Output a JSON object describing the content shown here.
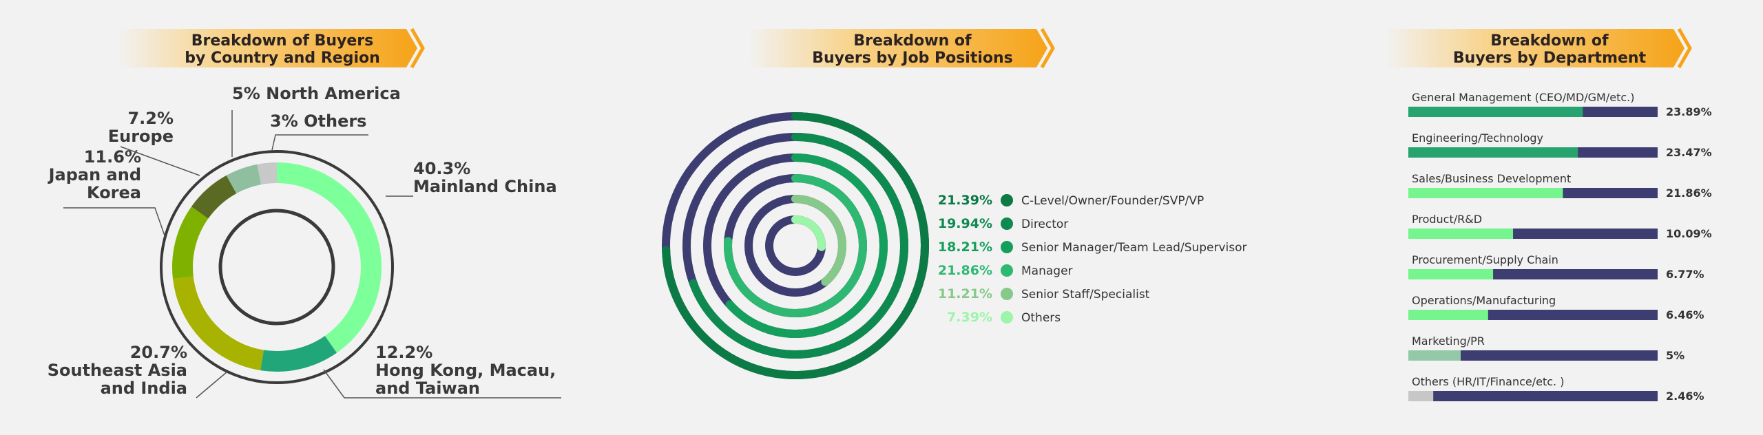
{
  "colors": {
    "navy": "#3d3d72",
    "banner_orange": "#f6a318",
    "background": "#f2f2f2"
  },
  "chart_data": [
    {
      "type": "pie",
      "title_lines": [
        "Breakdown of Buyers",
        "by Country and Region"
      ],
      "slices": [
        {
          "pct_label": "40.3%",
          "name_lines": [
            "Mainland China"
          ],
          "value": 40.3,
          "color": "#7dff9a"
        },
        {
          "pct_label": "12.2%",
          "name_lines": [
            "Hong Kong, Macau,",
            "and Taiwan"
          ],
          "value": 12.2,
          "color": "#21a67a"
        },
        {
          "pct_label": "20.7%",
          "name_lines": [
            "Southeast Asia",
            "and India"
          ],
          "value": 20.7,
          "color": "#a8b200"
        },
        {
          "pct_label": "11.6%",
          "name_lines": [
            "Japan and",
            "Korea"
          ],
          "value": 11.6,
          "color": "#7fb200"
        },
        {
          "pct_label": "7.2%",
          "name_lines": [
            "Europe"
          ],
          "value": 7.2,
          "color": "#5a6a22"
        },
        {
          "pct_label": "5%",
          "name_lines": [
            "North America"
          ],
          "value": 5,
          "color": "#8fbf9f"
        },
        {
          "pct_label": "3%",
          "name_lines": [
            "Others"
          ],
          "value": 3,
          "color": "#c8c8c8"
        }
      ]
    },
    {
      "type": "radial-bar",
      "title_lines": [
        "Breakdown of",
        "Buyers by Job Positions"
      ],
      "series": [
        {
          "pct_label": "21.39%",
          "name": "C-Level/Owner/Founder/SVP/VP",
          "value": 21.39,
          "color": "#0b7a45"
        },
        {
          "pct_label": "19.94%",
          "name": "Director",
          "value": 19.94,
          "color": "#0e8a50"
        },
        {
          "pct_label": "18.21%",
          "name": "Senior Manager/Team Lead/Supervisor",
          "value": 18.21,
          "color": "#14a05c"
        },
        {
          "pct_label": "21.86%",
          "name": "Manager",
          "value": 21.86,
          "color": "#2eb872"
        },
        {
          "pct_label": "11.21%",
          "name": "Senior Staff/Specialist",
          "value": 11.21,
          "color": "#86c98a"
        },
        {
          "pct_label": "7.39%",
          "name": "Others",
          "value": 7.39,
          "color": "#9cf5a8"
        }
      ]
    },
    {
      "type": "bar",
      "title_lines": [
        "Breakdown of",
        "Buyers by Department"
      ],
      "bars": [
        {
          "name": "General Management (CEO/MD/GM/etc.)",
          "label": "23.89%",
          "fill": 0.7,
          "color": "#26a36e"
        },
        {
          "name": "Engineering/Technology",
          "label": "23.47%",
          "fill": 0.68,
          "color": "#26a36e"
        },
        {
          "name": "Sales/Business Development",
          "label": "21.86%",
          "fill": 0.62,
          "color": "#76f58e"
        },
        {
          "name": "Product/R&D",
          "label": "10.09%",
          "fill": 0.42,
          "color": "#76f58e"
        },
        {
          "name": "Procurement/Supply Chain",
          "label": "6.77%",
          "fill": 0.34,
          "color": "#76f58e"
        },
        {
          "name": "Operations/Manufacturing",
          "label": "6.46%",
          "fill": 0.32,
          "color": "#76f58e"
        },
        {
          "name": "Marketing/PR",
          "label": "5%",
          "fill": 0.21,
          "color": "#93c9a6"
        },
        {
          "name": "Others (HR/IT/Finance/etc. )",
          "label": "2.46%",
          "fill": 0.1,
          "color": "#c7c7c7"
        }
      ]
    }
  ]
}
